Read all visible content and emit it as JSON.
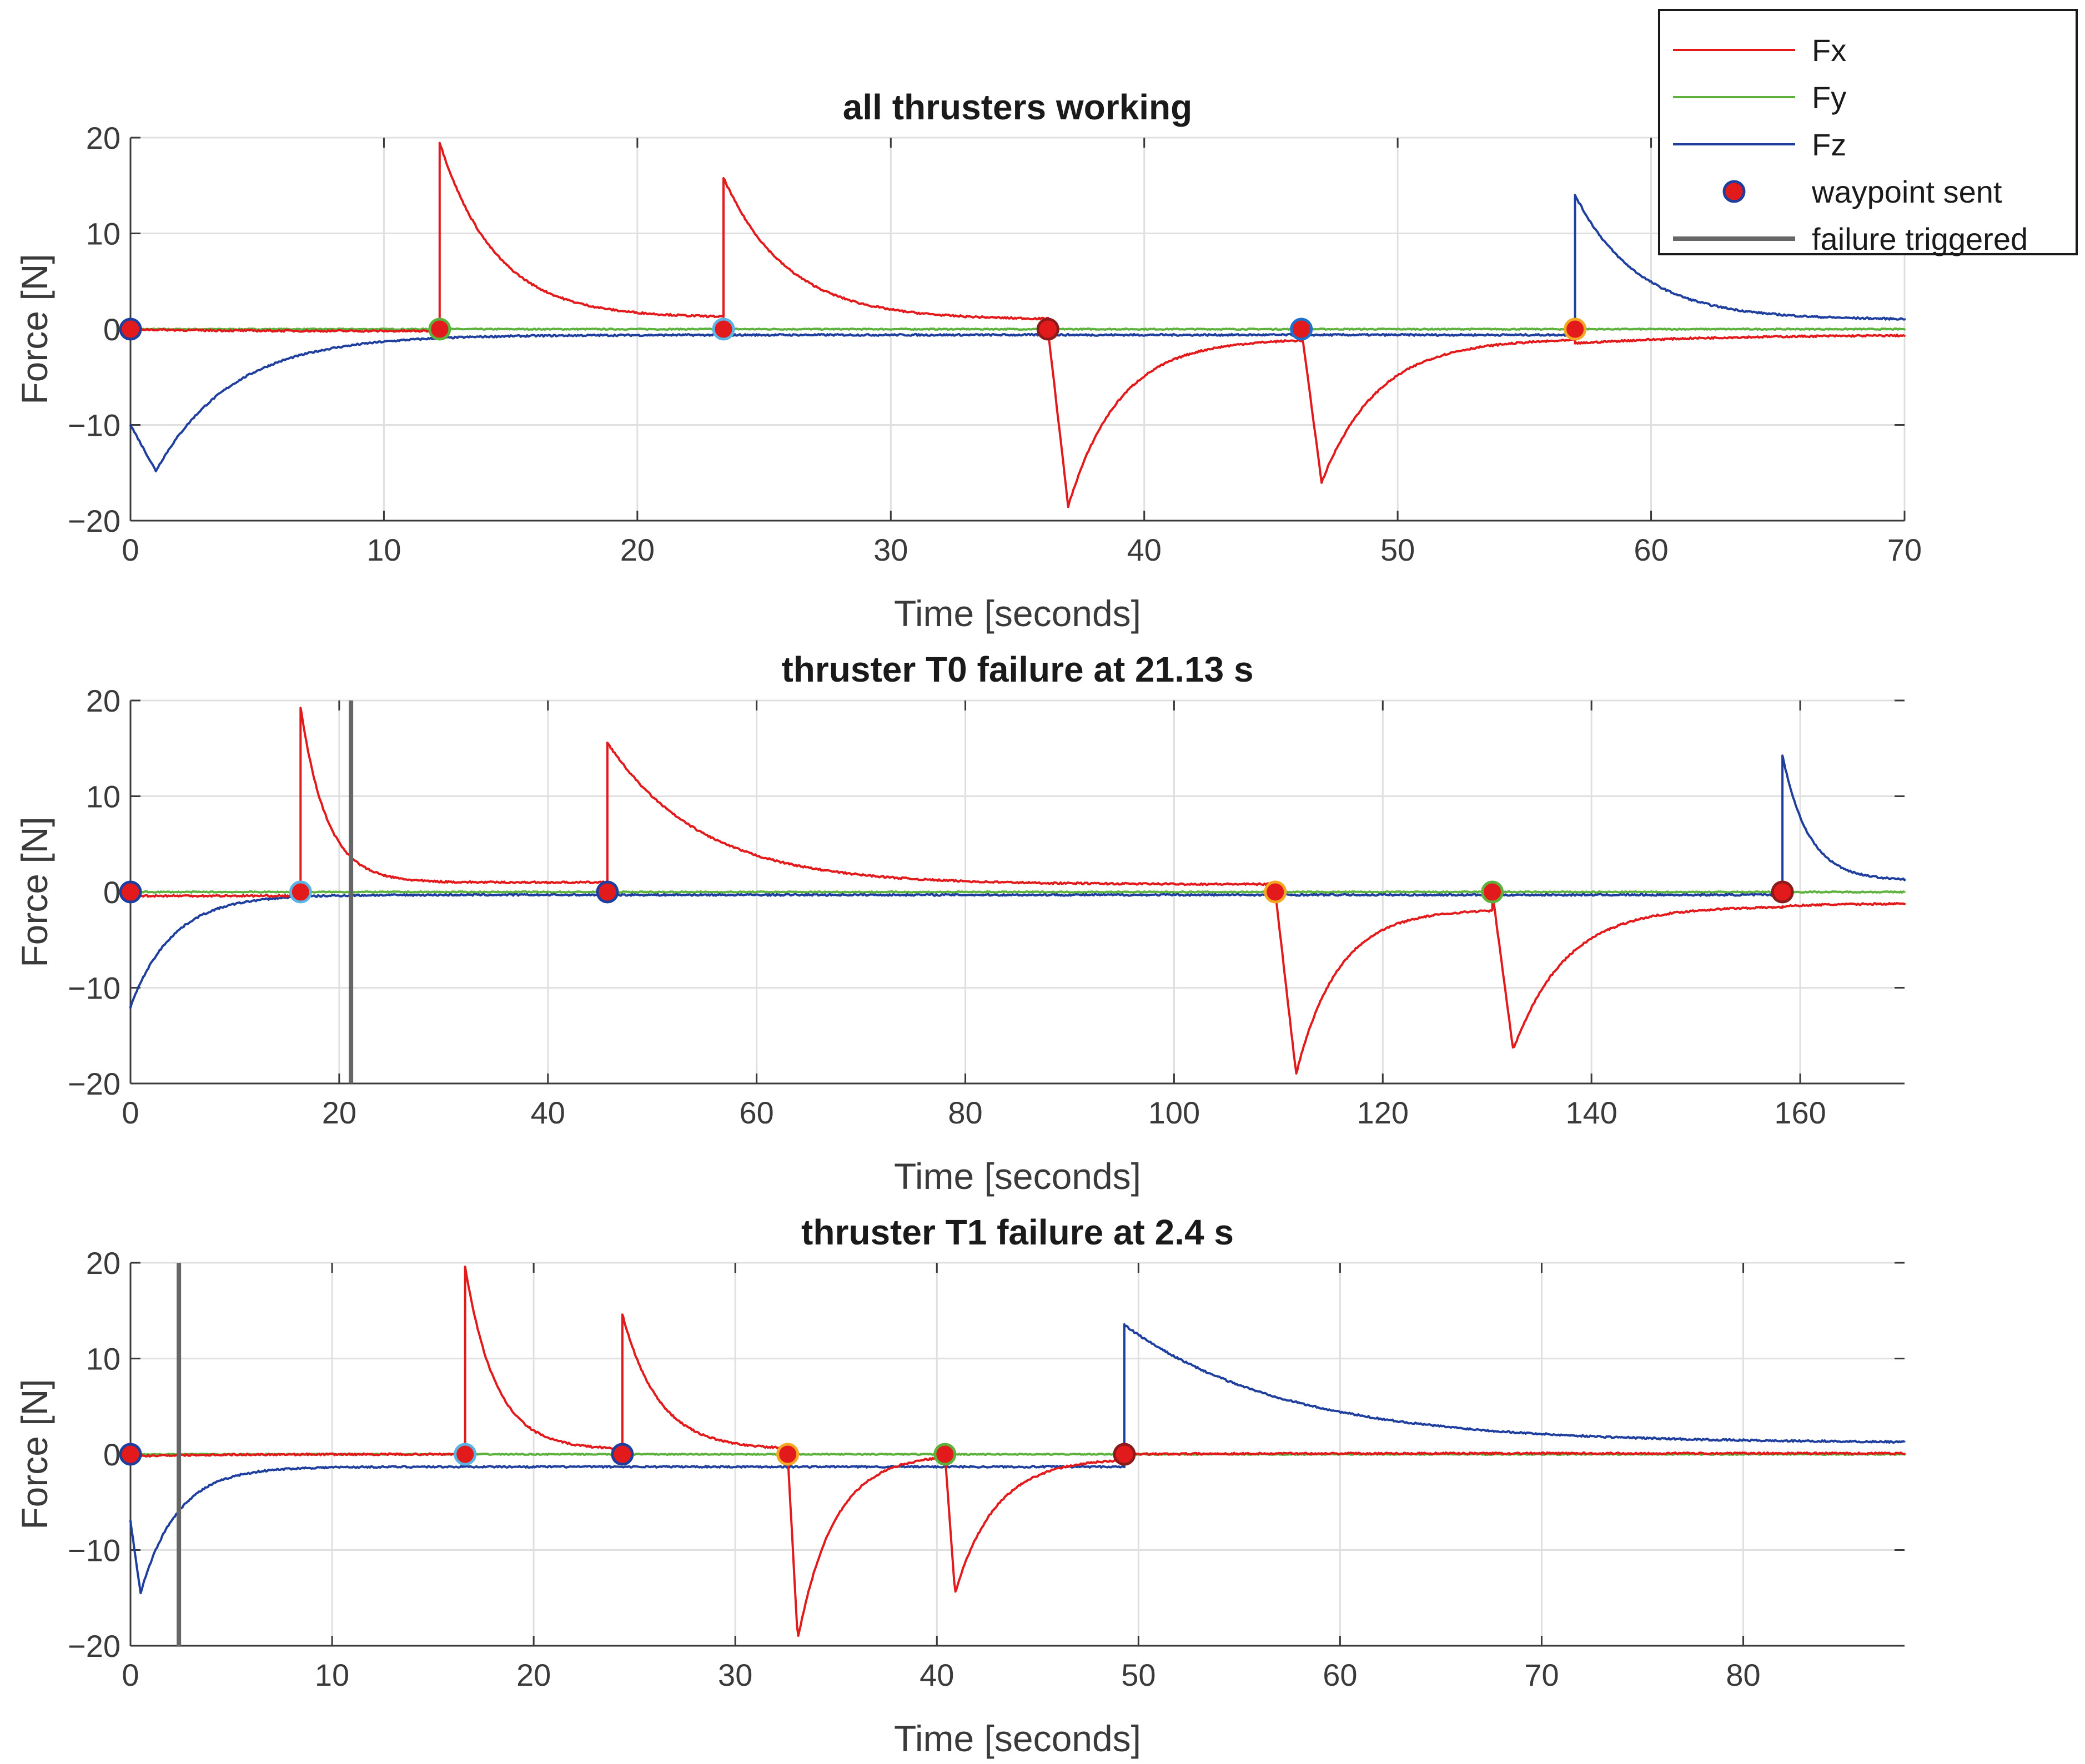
{
  "colors": {
    "Fx": "#e31a1c",
    "Fy": "#5cb23d",
    "Fz": "#1f3f9e",
    "waypoint_fill": "#e31a1c",
    "failure": "#666666",
    "grid": "#e0e0e0",
    "axis": "#3a3a3a"
  },
  "legend": {
    "position": "top-right",
    "entries": [
      {
        "label": "Fx",
        "kind": "line",
        "color": "#e31a1c"
      },
      {
        "label": "Fy",
        "kind": "line",
        "color": "#5cb23d"
      },
      {
        "label": "Fz",
        "kind": "line",
        "color": "#1f3f9e"
      },
      {
        "label": "waypoint sent",
        "kind": "marker",
        "color": "#e31a1c"
      },
      {
        "label": "failure triggered",
        "kind": "thickline",
        "color": "#666666"
      }
    ]
  },
  "chart_data": [
    {
      "type": "line",
      "title": "all thrusters working",
      "xlabel": "Time [seconds]",
      "ylabel": "Force [N]",
      "xlim": [
        0,
        70
      ],
      "ylim": [
        -20,
        20
      ],
      "xticks": [
        0,
        10,
        20,
        30,
        40,
        50,
        60,
        70
      ],
      "yticks": [
        -20,
        -10,
        0,
        10,
        20
      ],
      "grid": true,
      "failure_time": null,
      "series": [
        {
          "name": "Fx",
          "events": [
            {
              "t0": 0,
              "t1": 12.2,
              "start": 0,
              "peak": 0,
              "end": -0.2,
              "tau": 3
            },
            {
              "t0": 12.2,
              "t1": 23.4,
              "start": 0,
              "peak": 19.5,
              "end": 1.2,
              "tau": 2.2
            },
            {
              "t0": 23.4,
              "t1": 36.2,
              "start": 0,
              "peak": 15.8,
              "end": 1.0,
              "tau": 2.5
            },
            {
              "t0": 36.2,
              "t1": 46.2,
              "start": 0,
              "peak": -18.5,
              "end": -1.0,
              "tau": 2.0,
              "rise": 0.8
            },
            {
              "t0": 46.2,
              "t1": 57.0,
              "start": 0,
              "peak": -16.0,
              "end": -1.0,
              "tau": 2.2,
              "rise": 0.8
            },
            {
              "t0": 57.0,
              "t1": 70.0,
              "start": 0,
              "peak": -1.5,
              "end": -0.6,
              "tau": 5
            }
          ]
        },
        {
          "name": "Fy",
          "events": [
            {
              "t0": 0,
              "t1": 70,
              "start": 0,
              "peak": 0,
              "end": 0,
              "tau": 1
            }
          ]
        },
        {
          "name": "Fz",
          "events": [
            {
              "t0": 0,
              "t1": 57.0,
              "start": -10,
              "peak": -14.8,
              "end": -0.6,
              "tau": 3,
              "rise": 1.0
            },
            {
              "t0": 57.0,
              "t1": 70.0,
              "start": 0,
              "peak": 14.0,
              "end": 1.0,
              "tau": 2.5
            }
          ]
        }
      ],
      "waypoints": [
        {
          "t": 0,
          "edge": "#1f3f9e"
        },
        {
          "t": 12.2,
          "edge": "#5cb23d"
        },
        {
          "t": 23.4,
          "edge": "#5ab4e6"
        },
        {
          "t": 36.2,
          "edge": "#8b1a1a"
        },
        {
          "t": 46.2,
          "edge": "#1f6fcf"
        },
        {
          "t": 57.0,
          "edge": "#f5a623"
        }
      ]
    },
    {
      "type": "line",
      "title": "thruster T0 failure at 21.13 s",
      "xlabel": "Time [seconds]",
      "ylabel": "Force [N]",
      "xlim": [
        0,
        170
      ],
      "ylim": [
        -20,
        20
      ],
      "xticks": [
        0,
        20,
        40,
        60,
        80,
        100,
        120,
        140,
        160
      ],
      "yticks": [
        -20,
        -10,
        0,
        10,
        20
      ],
      "grid": true,
      "failure_time": 21.13,
      "series": [
        {
          "name": "Fx",
          "events": [
            {
              "t0": 0,
              "t1": 16.3,
              "start": 0,
              "peak": -0.4,
              "end": -0.4,
              "tau": 3
            },
            {
              "t0": 16.3,
              "t1": 45.7,
              "start": 0,
              "peak": 19.3,
              "end": 1.0,
              "tau": 2.5
            },
            {
              "t0": 45.7,
              "t1": 109.7,
              "start": 0,
              "peak": 15.6,
              "end": 0.8,
              "tau": 9
            },
            {
              "t0": 109.7,
              "t1": 130.5,
              "start": 0,
              "peak": -19.0,
              "end": -1.8,
              "tau": 4,
              "rise": 2.0
            },
            {
              "t0": 130.5,
              "t1": 158.3,
              "start": 0,
              "peak": -16.5,
              "end": -1.5,
              "tau": 5,
              "rise": 2.0
            },
            {
              "t0": 158.3,
              "t1": 170,
              "start": 0,
              "peak": -1.5,
              "end": -1.2,
              "tau": 5
            }
          ]
        },
        {
          "name": "Fy",
          "events": [
            {
              "t0": 0,
              "t1": 170,
              "start": 0,
              "peak": 0,
              "end": 0,
              "tau": 1
            }
          ]
        },
        {
          "name": "Fz",
          "events": [
            {
              "t0": 0,
              "t1": 158.3,
              "start": -12,
              "peak": -12,
              "end": -0.3,
              "tau": 4
            },
            {
              "t0": 158.3,
              "t1": 170,
              "start": 0,
              "peak": 14.3,
              "end": 1.2,
              "tau": 2.5
            }
          ]
        }
      ],
      "waypoints": [
        {
          "t": 0,
          "edge": "#1f3f9e"
        },
        {
          "t": 16.3,
          "edge": "#5ab4e6"
        },
        {
          "t": 45.7,
          "edge": "#1f3f9e"
        },
        {
          "t": 109.7,
          "edge": "#f5a623"
        },
        {
          "t": 130.5,
          "edge": "#5cb23d"
        },
        {
          "t": 158.3,
          "edge": "#8b1a1a"
        }
      ]
    },
    {
      "type": "line",
      "title": "thruster T1 failure at 2.4 s",
      "xlabel": "Time [seconds]",
      "ylabel": "Force [N]",
      "xlim": [
        0,
        88
      ],
      "ylim": [
        -20,
        20
      ],
      "xticks": [
        0,
        10,
        20,
        30,
        40,
        50,
        60,
        70,
        80
      ],
      "yticks": [
        -20,
        -10,
        0,
        10,
        20
      ],
      "grid": true,
      "failure_time": 2.4,
      "series": [
        {
          "name": "Fx",
          "events": [
            {
              "t0": 0,
              "t1": 16.6,
              "start": 0,
              "peak": -0.2,
              "end": 0,
              "tau": 3
            },
            {
              "t0": 16.6,
              "t1": 24.4,
              "start": 0,
              "peak": 19.6,
              "end": 0.5,
              "tau": 1.5
            },
            {
              "t0": 24.4,
              "t1": 32.6,
              "start": 0,
              "peak": 14.6,
              "end": 0.5,
              "tau": 1.8
            },
            {
              "t0": 32.6,
              "t1": 40.4,
              "start": 0,
              "peak": -19.3,
              "end": 0.0,
              "tau": 1.8,
              "rise": 0.5
            },
            {
              "t0": 40.4,
              "t1": 49.3,
              "start": 0,
              "peak": -14.5,
              "end": -0.4,
              "tau": 2.0,
              "rise": 0.5
            },
            {
              "t0": 49.3,
              "t1": 88,
              "start": 0,
              "peak": 0,
              "end": 0.1,
              "tau": 5
            }
          ]
        },
        {
          "name": "Fy",
          "events": [
            {
              "t0": 0,
              "t1": 88,
              "start": 0,
              "peak": 0,
              "end": 0,
              "tau": 1
            }
          ]
        },
        {
          "name": "Fz",
          "events": [
            {
              "t0": 0,
              "t1": 49.3,
              "start": -7,
              "peak": -14.5,
              "end": -1.3,
              "tau": 1.8,
              "rise": 0.5
            },
            {
              "t0": 49.3,
              "t1": 88,
              "start": 0,
              "peak": 13.5,
              "end": 1.2,
              "tau": 8
            }
          ]
        }
      ],
      "waypoints": [
        {
          "t": 0,
          "edge": "#1f3f9e"
        },
        {
          "t": 16.6,
          "edge": "#5ab4e6"
        },
        {
          "t": 24.4,
          "edge": "#1f3f9e"
        },
        {
          "t": 32.6,
          "edge": "#f5a623"
        },
        {
          "t": 40.4,
          "edge": "#5cb23d"
        },
        {
          "t": 49.3,
          "edge": "#8b1a1a"
        }
      ]
    }
  ]
}
